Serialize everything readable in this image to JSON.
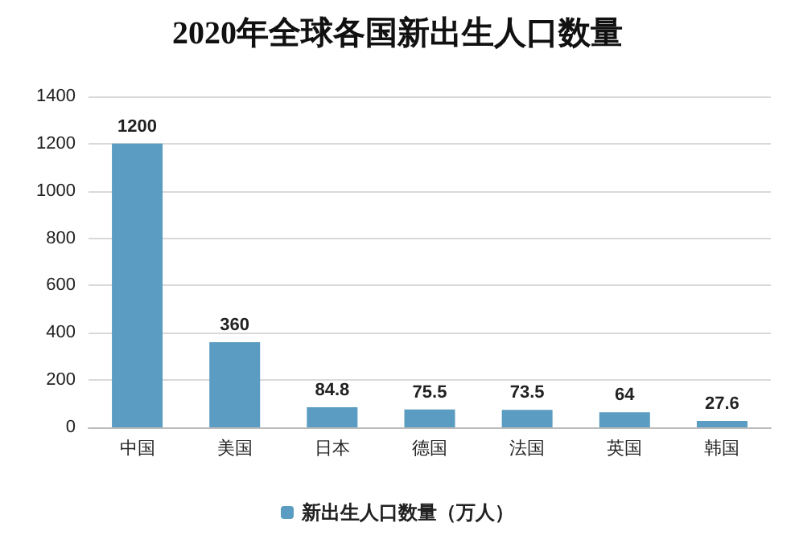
{
  "chart_data": {
    "type": "bar",
    "title": "2020年全球各国新出生人口数量",
    "categories": [
      "中国",
      "美国",
      "日本",
      "德国",
      "法国",
      "英国",
      "韩国"
    ],
    "series": [
      {
        "name": "新出生人口数量（万人）",
        "color": "#5a9cc2",
        "values": [
          1200,
          360,
          84.8,
          75.5,
          73.5,
          64,
          27.6
        ]
      }
    ],
    "ylim": [
      0,
      1400
    ],
    "yticks": [
      0,
      200,
      400,
      600,
      800,
      1000,
      1200,
      1400
    ],
    "grid": "y",
    "legend": "bottom",
    "data_labels": true
  }
}
